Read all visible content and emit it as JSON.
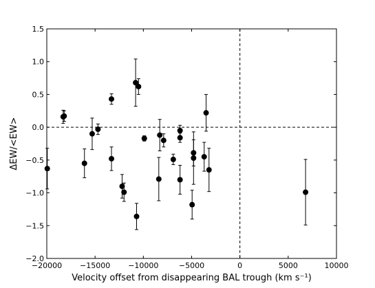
{
  "chart_data": {
    "type": "scatter",
    "title": "",
    "xlabel": "Velocity offset from disappearing BAL trough (km s⁻¹)",
    "ylabel": "ΔEW/<EW>",
    "xlim": [
      -20000,
      10000
    ],
    "ylim": [
      -2.0,
      1.5
    ],
    "xticks": [
      -20000,
      -15000,
      -10000,
      -5000,
      0,
      5000,
      10000
    ],
    "xtick_labels": [
      "−20000",
      "−15000",
      "−10000",
      "−5000",
      "0",
      "5000",
      "10000"
    ],
    "yticks": [
      -2.0,
      -1.5,
      -1.0,
      -0.5,
      0.0,
      0.5,
      1.0,
      1.5
    ],
    "ytick_labels": [
      "−2.0",
      "−1.5",
      "−1.0",
      "−0.5",
      "0.0",
      "0.5",
      "1.0",
      "1.5"
    ],
    "reference_lines": [
      {
        "axis": "y",
        "value": 0.0,
        "style": "dashed"
      },
      {
        "axis": "x",
        "value": 0,
        "style": "dashed"
      }
    ],
    "grid": false,
    "marker_color": "#000000",
    "points": [
      {
        "x": -19950,
        "y": -0.63,
        "err": 0.31
      },
      {
        "x": -18300,
        "y": 0.16,
        "err": 0.1
      },
      {
        "x": -18200,
        "y": 0.17,
        "err": 0.08
      },
      {
        "x": -16100,
        "y": -0.55,
        "err": 0.22
      },
      {
        "x": -15300,
        "y": -0.1,
        "err": 0.24
      },
      {
        "x": -14700,
        "y": -0.03,
        "err": 0.08
      },
      {
        "x": -13300,
        "y": 0.43,
        "err": 0.08
      },
      {
        "x": -13300,
        "y": -0.48,
        "err": 0.18
      },
      {
        "x": -12200,
        "y": -0.9,
        "err": 0.18
      },
      {
        "x": -12000,
        "y": -0.99,
        "err": 0.14
      },
      {
        "x": -10800,
        "y": 0.68,
        "err": 0.36
      },
      {
        "x": -10700,
        "y": -1.36,
        "err": 0.2
      },
      {
        "x": -10500,
        "y": 0.62,
        "err": 0.12
      },
      {
        "x": -9900,
        "y": -0.17,
        "err": 0.04
      },
      {
        "x": -8400,
        "y": -0.79,
        "err": 0.33
      },
      {
        "x": -8300,
        "y": -0.12,
        "err": 0.24
      },
      {
        "x": -7900,
        "y": -0.2,
        "err": 0.1
      },
      {
        "x": -6900,
        "y": -0.49,
        "err": 0.08
      },
      {
        "x": -6200,
        "y": -0.05,
        "err": 0.08
      },
      {
        "x": -6200,
        "y": -0.16,
        "err": 0.07
      },
      {
        "x": -6200,
        "y": -0.8,
        "err": 0.22
      },
      {
        "x": -4950,
        "y": -1.18,
        "err": 0.22
      },
      {
        "x": -4800,
        "y": -0.39,
        "err": 0.2
      },
      {
        "x": -4800,
        "y": -0.47,
        "err": 0.4
      },
      {
        "x": -3700,
        "y": -0.45,
        "err": 0.22
      },
      {
        "x": -3500,
        "y": 0.22,
        "err": 0.28
      },
      {
        "x": -3200,
        "y": -0.65,
        "err": 0.33
      },
      {
        "x": 6800,
        "y": -0.99,
        "err": 0.5
      }
    ]
  }
}
